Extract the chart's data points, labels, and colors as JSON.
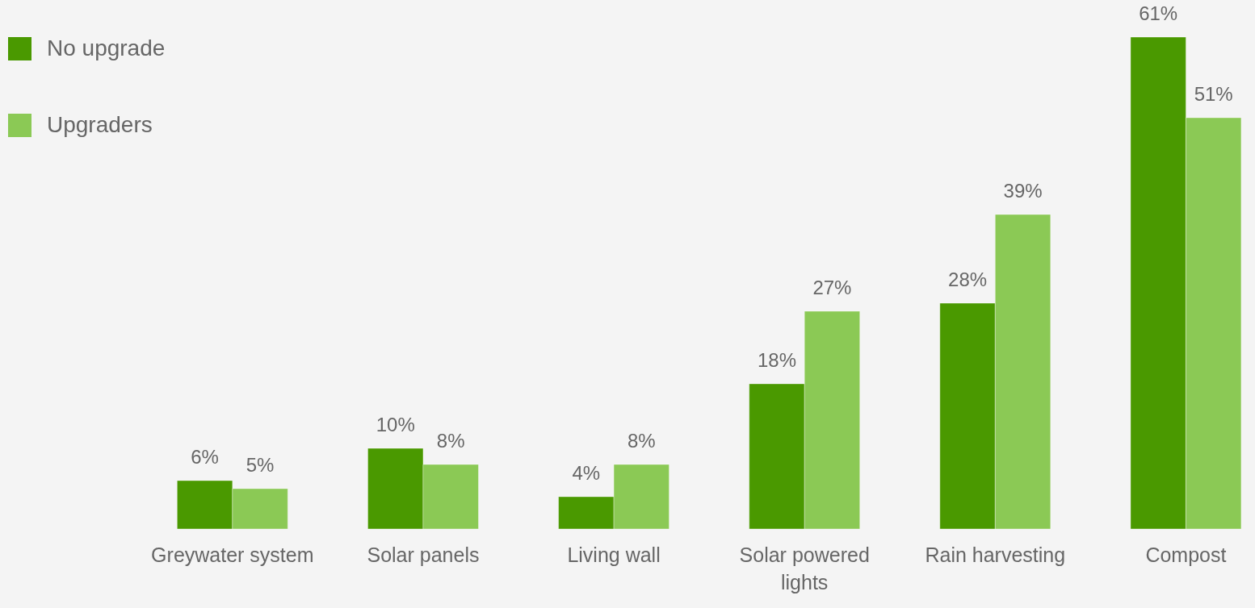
{
  "chart_data": {
    "type": "bar",
    "categories": [
      "Greywater system",
      "Solar panels",
      "Living wall",
      "Solar powered lights",
      "Rain harvesting",
      "Compost"
    ],
    "series": [
      {
        "name": "No upgrade",
        "color": "#4a9900",
        "values": [
          6,
          10,
          4,
          18,
          28,
          61
        ],
        "value_labels": [
          "6%",
          "10%",
          "4%",
          "18%",
          "28%",
          "61%"
        ]
      },
      {
        "name": "Upgraders",
        "color": "#8bc955",
        "values": [
          5,
          8,
          8,
          27,
          39,
          51
        ],
        "value_labels": [
          "5%",
          "8%",
          "8%",
          "27%",
          "39%",
          "51%"
        ]
      }
    ],
    "legend": "top left",
    "tick_labels": "x"
  }
}
